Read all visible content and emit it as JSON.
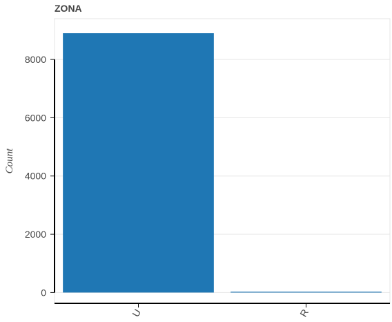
{
  "chart_data": {
    "type": "bar",
    "title": "ZONA",
    "xlabel": "",
    "ylabel": "Count",
    "categories": [
      "U",
      "R"
    ],
    "values": [
      8900,
      30
    ],
    "ylim": [
      -370,
      9400
    ],
    "yticks": [
      0,
      2000,
      4000,
      6000,
      8000
    ],
    "ytick_labels": [
      "0",
      "2000",
      "4000",
      "6000",
      "8000"
    ],
    "grid": true,
    "legend": "none",
    "colors": {
      "bar": "#1f77b4",
      "grid": "#e5e5e5",
      "axis": "#000000",
      "text": "#444444"
    }
  }
}
